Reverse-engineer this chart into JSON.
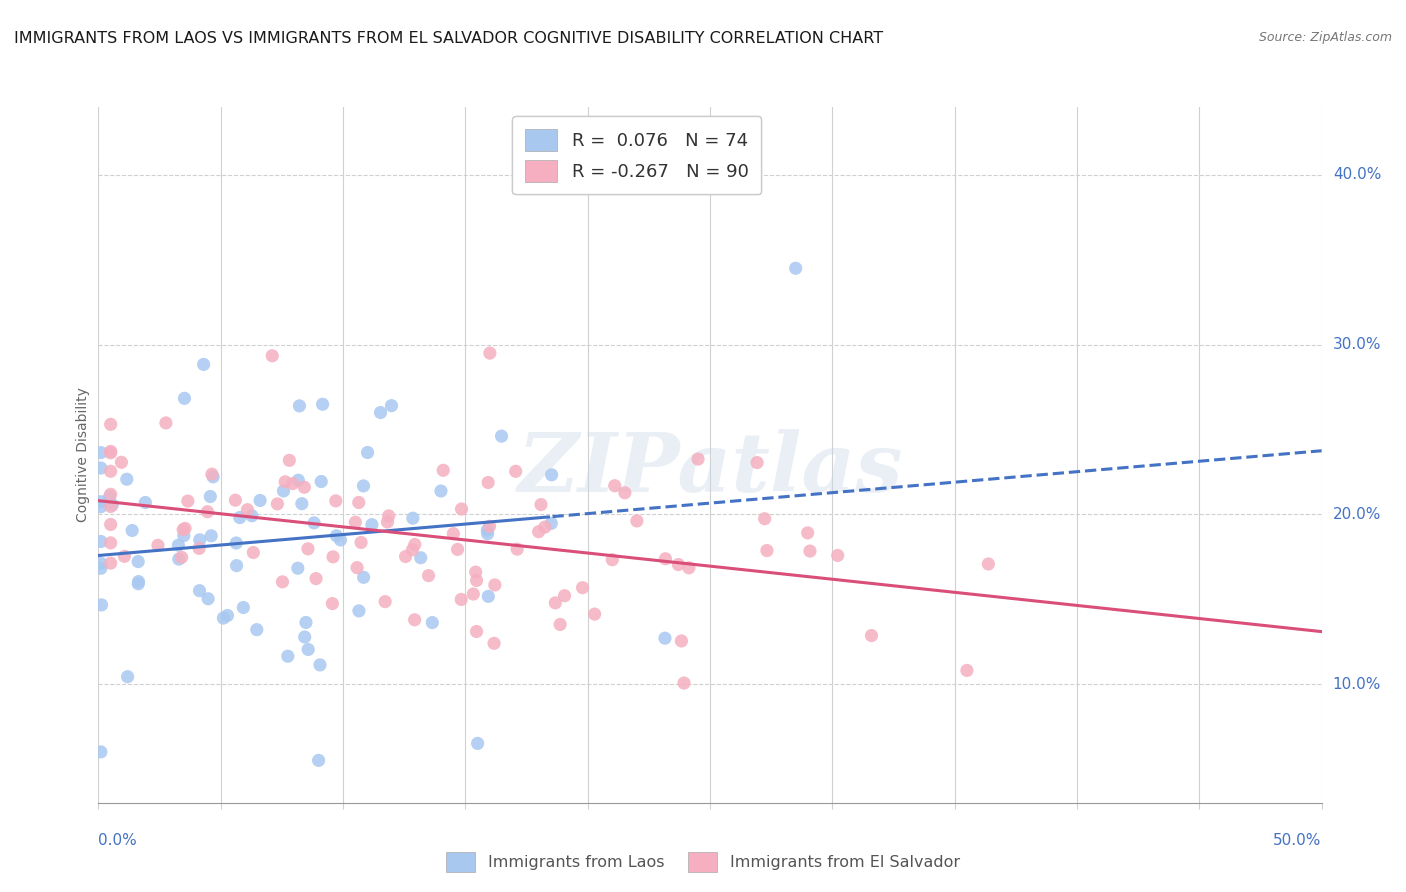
{
  "title": "IMMIGRANTS FROM LAOS VS IMMIGRANTS FROM EL SALVADOR COGNITIVE DISABILITY CORRELATION CHART",
  "source": "Source: ZipAtlas.com",
  "ylabel": "Cognitive Disability",
  "right_yticks": [
    "40.0%",
    "30.0%",
    "20.0%",
    "10.0%"
  ],
  "right_ytick_vals": [
    0.4,
    0.3,
    0.2,
    0.1
  ],
  "bottom_xtick_labels": [
    "0.0%",
    "50.0%"
  ],
  "xlim": [
    0.0,
    0.5
  ],
  "ylim": [
    0.03,
    0.44
  ],
  "legend_entry1": "R =  0.076   N = 74",
  "legend_entry2": "R = -0.267   N = 90",
  "legend_label1": "Immigrants from Laos",
  "legend_label2": "Immigrants from El Salvador",
  "color_laos": "#a8c8f0",
  "color_elsalvador": "#f5afc0",
  "line_color_laos": "#4472c4",
  "line_color_elsalvador": "#d94f7a",
  "watermark": "ZIPatlas",
  "R_laos": 0.076,
  "N_laos": 74,
  "R_elsalvador": -0.267,
  "N_elsalvador": 90,
  "grid_color": "#d0d0d0",
  "background_color": "#ffffff",
  "title_fontsize": 11.5,
  "axis_label_fontsize": 10,
  "tick_fontsize": 11,
  "tick_color": "#4472c4"
}
